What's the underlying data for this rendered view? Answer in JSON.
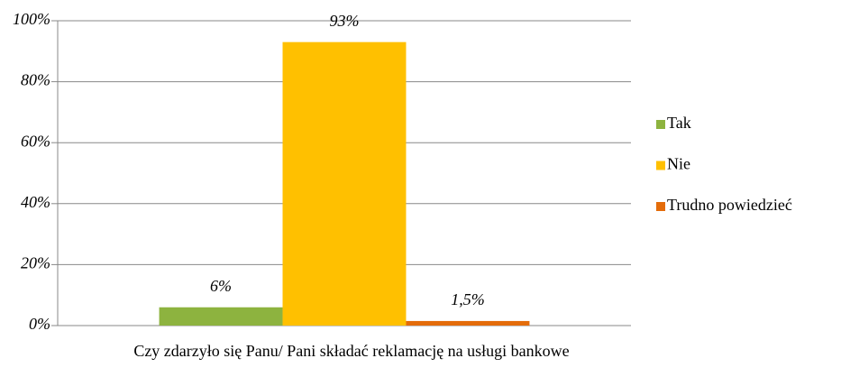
{
  "chart_data": {
    "type": "bar",
    "categories": [
      "Czy zdarzyło się Panu/ Pani składać reklamację na usługi bankowe"
    ],
    "series": [
      {
        "name": "Tak",
        "color": "#8db33f",
        "values": [
          6
        ],
        "value_labels": [
          "6%"
        ]
      },
      {
        "name": "Nie",
        "color": "#ffc000",
        "values": [
          93
        ],
        "value_labels": [
          "93%"
        ]
      },
      {
        "name": "Trudno powiedzieć",
        "color": "#e46c0a",
        "values": [
          1.5
        ],
        "value_labels": [
          "1,5%"
        ]
      }
    ],
    "ylim": [
      0,
      100
    ],
    "yticks": [
      {
        "value": 0,
        "label": "0%"
      },
      {
        "value": 20,
        "label": "20%"
      },
      {
        "value": 40,
        "label": "40%"
      },
      {
        "value": 60,
        "label": "60%"
      },
      {
        "value": 80,
        "label": "80%"
      },
      {
        "value": 100,
        "label": "100%"
      }
    ],
    "grid": true,
    "legend": "right"
  }
}
